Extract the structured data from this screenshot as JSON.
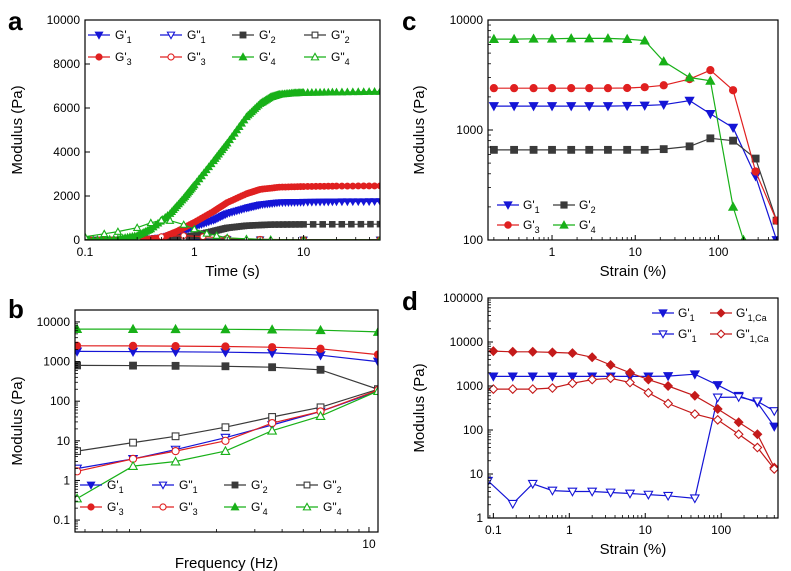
{
  "colors": {
    "blue": "#1515d6",
    "red": "#e02020",
    "black": "#3a3a3a",
    "green": "#18b018",
    "darkred": "#c41a1a"
  },
  "chart_data": [
    {
      "panel": "a",
      "type": "line",
      "xscale": "log",
      "yscale": "linear",
      "xlim": [
        0.1,
        50
      ],
      "ylim": [
        0,
        10000
      ],
      "xlabel": "Time (s)",
      "ylabel": "Modulus (Pa)",
      "xticks": [
        {
          "v": 0.1,
          "label": "0.1"
        },
        {
          "v": 1,
          "label": "1"
        },
        {
          "v": 10,
          "label": "10"
        }
      ],
      "yticks": [
        {
          "v": 0,
          "label": "0"
        },
        {
          "v": 2000,
          "label": "2000"
        },
        {
          "v": 4000,
          "label": "4000"
        },
        {
          "v": 6000,
          "label": "6000"
        },
        {
          "v": 8000,
          "label": "8000"
        },
        {
          "v": 10000,
          "label": "10000"
        }
      ],
      "legend_position": "top-left",
      "series": [
        {
          "name": "G'1",
          "label": "G'",
          "sub": "1",
          "color": "blue",
          "marker": "tri-down",
          "filled": true,
          "dense": true,
          "x": [
            0.1,
            0.3,
            0.5,
            0.7,
            1,
            1.5,
            2,
            3,
            4,
            6,
            10,
            20,
            50
          ],
          "y": [
            0,
            0,
            100,
            300,
            600,
            900,
            1200,
            1450,
            1600,
            1700,
            1720,
            1740,
            1750
          ]
        },
        {
          "name": "G''1",
          "label": "G\"",
          "sub": "1",
          "color": "blue",
          "marker": "tri-down",
          "filled": false,
          "dense": false,
          "x": [
            0.1,
            0.3,
            0.5,
            0.8,
            1.2,
            2,
            4,
            10,
            50
          ],
          "y": [
            0,
            20,
            60,
            60,
            40,
            20,
            10,
            5,
            5
          ]
        },
        {
          "name": "G'2",
          "label": "G'",
          "sub": "2",
          "color": "black",
          "marker": "square",
          "filled": true,
          "dense": true,
          "x": [
            0.1,
            0.3,
            0.6,
            1,
            1.5,
            2,
            3,
            5,
            10,
            50
          ],
          "y": [
            0,
            0,
            50,
            200,
            400,
            550,
            650,
            700,
            710,
            720
          ]
        },
        {
          "name": "G''2",
          "label": "G\"",
          "sub": "2",
          "color": "black",
          "marker": "square",
          "filled": false,
          "dense": false,
          "x": [
            0.1,
            0.3,
            0.5,
            0.8,
            1.2,
            2,
            4,
            10,
            50
          ],
          "y": [
            0,
            150,
            100,
            80,
            60,
            40,
            20,
            10,
            5
          ]
        },
        {
          "name": "G'3",
          "label": "G'",
          "sub": "3",
          "color": "red",
          "marker": "circle",
          "filled": true,
          "dense": true,
          "x": [
            0.1,
            0.3,
            0.5,
            0.7,
            1,
            1.5,
            2,
            3,
            4,
            6,
            10,
            20,
            50
          ],
          "y": [
            0,
            0,
            100,
            400,
            800,
            1300,
            1700,
            2100,
            2300,
            2400,
            2430,
            2450,
            2460
          ]
        },
        {
          "name": "G''3",
          "label": "G\"",
          "sub": "3",
          "color": "red",
          "marker": "circle",
          "filled": false,
          "dense": false,
          "x": [
            0.1,
            0.3,
            0.5,
            0.8,
            1.2,
            2,
            4,
            10,
            50
          ],
          "y": [
            0,
            50,
            150,
            200,
            150,
            80,
            30,
            10,
            5
          ]
        },
        {
          "name": "G'4",
          "label": "G'",
          "sub": "4",
          "color": "green",
          "marker": "tri-up",
          "filled": true,
          "dense": true,
          "x": [
            0.1,
            0.2,
            0.3,
            0.4,
            0.6,
            0.8,
            1,
            1.5,
            2,
            3,
            4,
            5,
            6,
            8,
            10,
            20,
            50
          ],
          "y": [
            0,
            50,
            200,
            500,
            1200,
            1900,
            2500,
            3600,
            4400,
            5600,
            6200,
            6500,
            6620,
            6680,
            6700,
            6720,
            6750
          ]
        },
        {
          "name": "G''4",
          "label": "G\"",
          "sub": "4",
          "color": "green",
          "marker": "tri-up",
          "filled": false,
          "dense": false,
          "x": [
            0.1,
            0.15,
            0.2,
            0.3,
            0.4,
            0.5,
            0.6,
            0.8,
            1,
            1.3,
            1.6,
            2,
            3,
            5,
            10,
            50
          ],
          "y": [
            150,
            280,
            380,
            560,
            780,
            900,
            880,
            700,
            500,
            300,
            200,
            100,
            50,
            20,
            10,
            10
          ]
        }
      ]
    },
    {
      "panel": "b",
      "type": "line",
      "xscale": "log",
      "yscale": "log",
      "xlim": [
        0.45,
        11
      ],
      "ylim": [
        0.05,
        20000
      ],
      "xlabel": "Frequency (Hz)",
      "ylabel": "Modulus (Pa)",
      "xticks": [
        {
          "v": 10,
          "label": "10"
        }
      ],
      "yticks": [
        {
          "v": 0.1,
          "label": "0.1"
        },
        {
          "v": 1,
          "label": "1"
        },
        {
          "v": 10,
          "label": "10"
        },
        {
          "v": 100,
          "label": "100"
        },
        {
          "v": 1000,
          "label": "1000"
        },
        {
          "v": 10000,
          "label": "10000"
        }
      ],
      "legend_position": "bottom",
      "series": [
        {
          "name": "G'1",
          "label": "G'",
          "sub": "1",
          "color": "blue",
          "marker": "tri-down",
          "filled": true,
          "x": [
            0.46,
            0.83,
            1.3,
            2.2,
            3.6,
            6,
            11
          ],
          "y": [
            1800,
            1780,
            1760,
            1720,
            1650,
            1450,
            1000
          ]
        },
        {
          "name": "G''1",
          "label": "G\"",
          "sub": "1",
          "color": "blue",
          "marker": "tri-down",
          "filled": false,
          "x": [
            0.46,
            0.83,
            1.3,
            2.2,
            3.6,
            6,
            11
          ],
          "y": [
            2,
            3.5,
            6,
            12,
            25,
            55,
            180
          ]
        },
        {
          "name": "G'2",
          "label": "G'",
          "sub": "2",
          "color": "black",
          "marker": "square",
          "filled": true,
          "x": [
            0.46,
            0.83,
            1.3,
            2.2,
            3.6,
            6,
            11
          ],
          "y": [
            800,
            790,
            780,
            760,
            720,
            620,
            200
          ]
        },
        {
          "name": "G''2",
          "label": "G\"",
          "sub": "2",
          "color": "black",
          "marker": "square",
          "filled": false,
          "x": [
            0.46,
            0.83,
            1.3,
            2.2,
            3.6,
            6,
            11
          ],
          "y": [
            5.5,
            9,
            13,
            22,
            40,
            70,
            200
          ]
        },
        {
          "name": "G'3",
          "label": "G'",
          "sub": "3",
          "color": "red",
          "marker": "circle",
          "filled": true,
          "x": [
            0.46,
            0.83,
            1.3,
            2.2,
            3.6,
            6,
            11
          ],
          "y": [
            2500,
            2480,
            2450,
            2400,
            2300,
            2100,
            1500
          ]
        },
        {
          "name": "G''3",
          "label": "G\"",
          "sub": "3",
          "color": "red",
          "marker": "circle",
          "filled": false,
          "x": [
            0.46,
            0.83,
            1.3,
            2.2,
            3.6,
            6,
            11
          ],
          "y": [
            1.7,
            3.5,
            5.5,
            10,
            28,
            55,
            190
          ]
        },
        {
          "name": "G'4",
          "label": "G'",
          "sub": "4",
          "color": "green",
          "marker": "tri-up",
          "filled": true,
          "x": [
            0.46,
            0.83,
            1.3,
            2.2,
            3.6,
            6,
            11
          ],
          "y": [
            6600,
            6600,
            6550,
            6500,
            6400,
            6200,
            5600
          ]
        },
        {
          "name": "G''4",
          "label": "G\"",
          "sub": "4",
          "color": "green",
          "marker": "tri-up",
          "filled": false,
          "x": [
            0.46,
            0.83,
            1.3,
            2.2,
            3.6,
            6,
            11
          ],
          "y": [
            0.35,
            2.3,
            3,
            5.5,
            18,
            42,
            180
          ]
        }
      ]
    },
    {
      "panel": "c",
      "type": "line",
      "xscale": "log",
      "yscale": "log",
      "xlim": [
        0.17,
        520
      ],
      "ylim": [
        100,
        10000
      ],
      "xlabel": "Strain (%)",
      "ylabel": "Modulus (Pa)",
      "xticks": [
        {
          "v": 1,
          "label": "1"
        },
        {
          "v": 10,
          "label": "10"
        },
        {
          "v": 100,
          "label": "100"
        }
      ],
      "yticks": [
        {
          "v": 100,
          "label": "100"
        },
        {
          "v": 1000,
          "label": "1000"
        },
        {
          "v": 10000,
          "label": "10000"
        }
      ],
      "legend_position": "bottom-left",
      "series": [
        {
          "name": "G'1",
          "label": "G'",
          "sub": "1",
          "color": "blue",
          "marker": "tri-down",
          "filled": true,
          "x": [
            0.2,
            0.35,
            0.6,
            1,
            1.7,
            2.8,
            4.7,
            8,
            13,
            22,
            45,
            80,
            150,
            280,
            500
          ],
          "y": [
            1650,
            1650,
            1650,
            1650,
            1650,
            1650,
            1650,
            1660,
            1670,
            1700,
            1850,
            1400,
            1050,
            380,
            100
          ]
        },
        {
          "name": "G'2",
          "label": "G'",
          "sub": "2",
          "color": "black",
          "marker": "square",
          "filled": true,
          "x": [
            0.2,
            0.35,
            0.6,
            1,
            1.7,
            2.8,
            4.7,
            8,
            13,
            22,
            45,
            80,
            150,
            280,
            500
          ],
          "y": [
            660,
            660,
            660,
            660,
            660,
            660,
            660,
            660,
            660,
            670,
            710,
            840,
            800,
            550,
            150
          ]
        },
        {
          "name": "G'3",
          "label": "G'",
          "sub": "3",
          "color": "red",
          "marker": "circle",
          "filled": true,
          "x": [
            0.2,
            0.35,
            0.6,
            1,
            1.7,
            2.8,
            4.7,
            8,
            13,
            22,
            45,
            80,
            150,
            280,
            500
          ],
          "y": [
            2400,
            2400,
            2400,
            2400,
            2400,
            2400,
            2400,
            2410,
            2450,
            2550,
            2900,
            3500,
            2300,
            420,
            150
          ]
        },
        {
          "name": "G'4",
          "label": "G'",
          "sub": "4",
          "color": "green",
          "marker": "tri-up",
          "filled": true,
          "x": [
            0.2,
            0.35,
            0.6,
            1,
            1.7,
            2.8,
            4.7,
            8,
            13,
            22,
            45,
            80,
            150,
            200
          ],
          "y": [
            6700,
            6700,
            6750,
            6750,
            6800,
            6800,
            6800,
            6700,
            6500,
            4200,
            3000,
            2800,
            200,
            100
          ]
        }
      ],
      "legend": [
        {
          "label": "G'",
          "sub": "1",
          "color": "blue",
          "marker": "tri-down"
        },
        {
          "label": "G'",
          "sub": "2",
          "color": "black",
          "marker": "square"
        },
        {
          "label": "G'",
          "sub": "3",
          "color": "red",
          "marker": "circle"
        },
        {
          "label": "G'",
          "sub": "4",
          "color": "green",
          "marker": "tri-up"
        }
      ]
    },
    {
      "panel": "d",
      "type": "line",
      "xscale": "log",
      "yscale": "log",
      "xlim": [
        0.085,
        560
      ],
      "ylim": [
        1,
        100000
      ],
      "xlabel": "Strain (%)",
      "ylabel": "Modulus (Pa)",
      "xticks": [
        {
          "v": 0.1,
          "label": "0.1"
        },
        {
          "v": 1,
          "label": "1"
        },
        {
          "v": 10,
          "label": "10"
        },
        {
          "v": 100,
          "label": "100"
        }
      ],
      "yticks": [
        {
          "v": 1,
          "label": "1"
        },
        {
          "v": 10,
          "label": "10"
        },
        {
          "v": 100,
          "label": "100"
        },
        {
          "v": 1000,
          "label": "1000"
        },
        {
          "v": 10000,
          "label": "10000"
        },
        {
          "v": 100000,
          "label": "100000"
        }
      ],
      "legend_position": "top-right",
      "series": [
        {
          "name": "G'1",
          "label": "G'",
          "sub": "1",
          "color": "blue",
          "marker": "tri-down",
          "filled": true,
          "x": [
            0.1,
            0.18,
            0.33,
            0.6,
            1.1,
            2,
            3.5,
            6.3,
            11,
            20,
            45,
            90,
            170,
            300,
            500
          ],
          "y": [
            1650,
            1650,
            1650,
            1650,
            1650,
            1650,
            1650,
            1650,
            1650,
            1680,
            1850,
            1050,
            600,
            420,
            120
          ]
        },
        {
          "name": "G''1",
          "label": "G\"",
          "sub": "1",
          "color": "blue",
          "marker": "tri-down",
          "filled": false,
          "x": [
            0.085,
            0.18,
            0.33,
            0.6,
            1.1,
            2,
            3.5,
            6.3,
            11,
            20,
            45,
            90,
            170,
            300,
            500
          ],
          "y": [
            7,
            2.1,
            6,
            4.2,
            4,
            4,
            3.8,
            3.6,
            3.4,
            3.2,
            2.8,
            550,
            560,
            450,
            270
          ]
        },
        {
          "name": "G'1,Ca",
          "label": "G'",
          "sub": "1,Ca",
          "color": "darkred",
          "marker": "diamond",
          "filled": true,
          "x": [
            0.1,
            0.18,
            0.33,
            0.6,
            1.1,
            2,
            3.5,
            6.3,
            11,
            20,
            45,
            90,
            170,
            300,
            500
          ],
          "y": [
            6200,
            6000,
            6000,
            5800,
            5600,
            4500,
            3000,
            2000,
            1400,
            1000,
            600,
            300,
            150,
            80,
            14
          ]
        },
        {
          "name": "G''1,Ca",
          "label": "G\"",
          "sub": "1,Ca",
          "color": "darkred",
          "marker": "diamond",
          "filled": false,
          "x": [
            0.1,
            0.18,
            0.33,
            0.6,
            1.1,
            2,
            3.5,
            6.3,
            11,
            20,
            45,
            90,
            170,
            300,
            500
          ],
          "y": [
            850,
            850,
            850,
            900,
            1150,
            1400,
            1500,
            1200,
            700,
            400,
            230,
            170,
            80,
            40,
            13
          ]
        }
      ],
      "legend": [
        {
          "label": "G'",
          "sub": "1",
          "color": "blue",
          "marker": "tri-down",
          "filled": true
        },
        {
          "label": "G'",
          "sub": "1,Ca",
          "color": "darkred",
          "marker": "diamond",
          "filled": true
        },
        {
          "label": "G\"",
          "sub": "1",
          "color": "blue",
          "marker": "tri-down",
          "filled": false
        },
        {
          "label": "G\"",
          "sub": "1,Ca",
          "color": "darkred",
          "marker": "diamond",
          "filled": false
        }
      ]
    }
  ]
}
